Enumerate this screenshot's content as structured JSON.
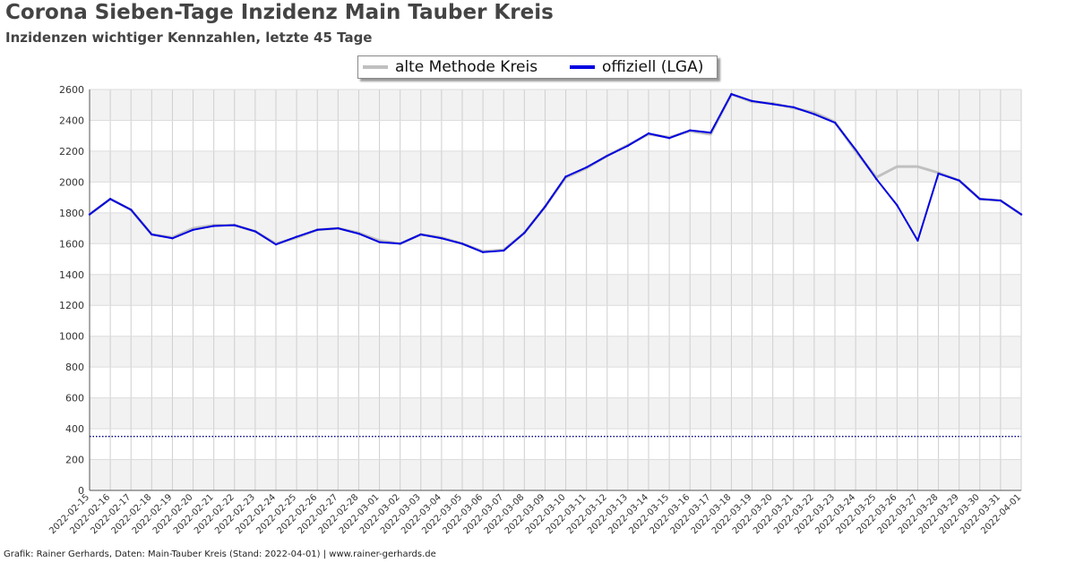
{
  "header": {
    "title": "Corona Sieben-Tage Inzidenz Main Tauber Kreis",
    "subtitle": "Inzidenzen wichtiger Kennzahlen, letzte 45 Tage"
  },
  "footer": {
    "text": "Grafik: Rainer Gerhards, Daten: Main-Tauber Kreis (Stand: 2022-04-01) | www.rainer-gerhards.de"
  },
  "chart_data": {
    "type": "line",
    "title": "Corona Sieben-Tage Inzidenz Main Tauber Kreis",
    "subtitle": "Inzidenzen wichtiger Kennzahlen, letzte 45 Tage",
    "xlabel": "",
    "ylabel": "",
    "ylim": [
      0,
      2600
    ],
    "yticks": [
      0,
      200,
      400,
      600,
      800,
      1000,
      1200,
      1400,
      1600,
      1800,
      2000,
      2200,
      2400,
      2600
    ],
    "grid": true,
    "legend_position": "top-center",
    "reference_line": {
      "value": 350,
      "color": "#000080",
      "style": "dotted"
    },
    "x": [
      "2022-02-15",
      "2022-02-16",
      "2022-02-17",
      "2022-02-18",
      "2022-02-19",
      "2022-02-20",
      "2022-02-21",
      "2022-02-22",
      "2022-02-23",
      "2022-02-24",
      "2022-02-25",
      "2022-02-26",
      "2022-02-27",
      "2022-02-28",
      "2022-03-01",
      "2022-03-02",
      "2022-03-03",
      "2022-03-04",
      "2022-03-05",
      "2022-03-06",
      "2022-03-07",
      "2022-03-08",
      "2022-03-09",
      "2022-03-10",
      "2022-03-11",
      "2022-03-12",
      "2022-03-13",
      "2022-03-14",
      "2022-03-15",
      "2022-03-16",
      "2022-03-17",
      "2022-03-18",
      "2022-03-19",
      "2022-03-20",
      "2022-03-21",
      "2022-03-22",
      "2022-03-23",
      "2022-03-24",
      "2022-03-25",
      "2022-03-26",
      "2022-03-27",
      "2022-03-28",
      "2022-03-29",
      "2022-03-30",
      "2022-03-31",
      "2022-04-01"
    ],
    "series": [
      {
        "name": "alte Methode Kreis",
        "color": "#c0c0c0",
        "values": [
          1790,
          1890,
          1820,
          1660,
          1640,
          1700,
          1720,
          1720,
          1680,
          1600,
          1640,
          1690,
          1700,
          1670,
          1620,
          1600,
          1660,
          1640,
          1600,
          1550,
          1560,
          1670,
          1840,
          2030,
          2090,
          2170,
          2240,
          2310,
          2290,
          2330,
          2310,
          2570,
          2520,
          2510,
          2480,
          2450,
          2390,
          2200,
          2030,
          2100,
          2100,
          2060,
          2010,
          1890,
          1880,
          1790
        ]
      },
      {
        "name": "offiziell (LGA)",
        "color": "#0000e0",
        "values": [
          1790,
          1890,
          1820,
          1660,
          1635,
          1690,
          1715,
          1720,
          1680,
          1595,
          1645,
          1690,
          1700,
          1665,
          1610,
          1600,
          1660,
          1635,
          1600,
          1545,
          1555,
          1670,
          1840,
          2035,
          2095,
          2170,
          2235,
          2315,
          2285,
          2335,
          2320,
          2570,
          2525,
          2505,
          2485,
          2440,
          2385,
          2210,
          2020,
          1850,
          1620,
          2055,
          2010,
          1890,
          1880,
          1790
        ]
      }
    ]
  }
}
